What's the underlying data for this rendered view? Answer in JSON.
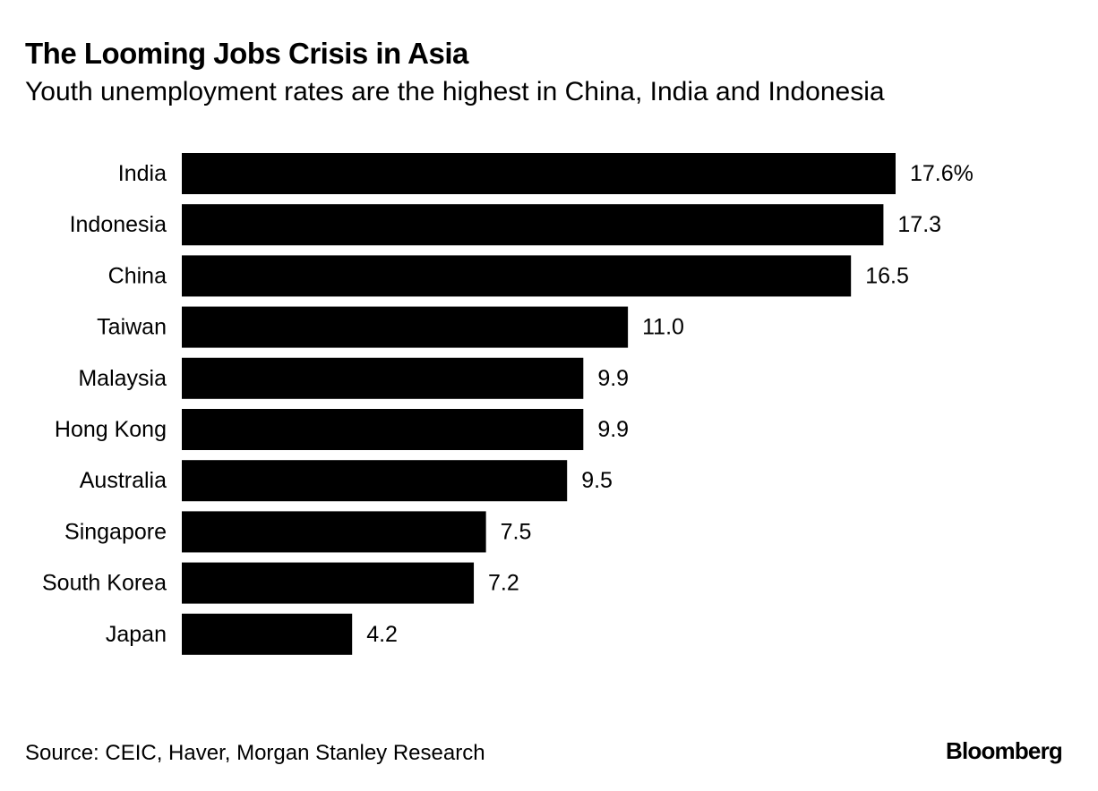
{
  "header": {
    "title": "The Looming Jobs Crisis in Asia",
    "subtitle": "Youth unemployment rates are the highest in China, India and Indonesia"
  },
  "footer": {
    "source": "Source: CEIC, Haver, Morgan Stanley Research",
    "brand": "Bloomberg"
  },
  "colors": {
    "bar": "#000000",
    "background": "#ffffff",
    "text": "#000000"
  },
  "chart_data": {
    "type": "bar",
    "orientation": "horizontal",
    "title": "The Looming Jobs Crisis in Asia",
    "subtitle": "Youth unemployment rates are the highest in China, India and Indonesia",
    "xlabel": "",
    "ylabel": "",
    "grid": false,
    "categories": [
      "India",
      "Indonesia",
      "China",
      "Taiwan",
      "Malaysia",
      "Hong Kong",
      "Australia",
      "Singapore",
      "South Korea",
      "Japan"
    ],
    "values": [
      17.6,
      17.3,
      16.5,
      11.0,
      9.9,
      9.9,
      9.5,
      7.5,
      7.2,
      4.2
    ],
    "value_labels": [
      "17.6%",
      "17.3",
      "16.5",
      "11.0",
      "9.9",
      "9.9",
      "9.5",
      "7.5",
      "7.2",
      "4.2"
    ],
    "xlim": [
      0,
      17.6
    ]
  }
}
